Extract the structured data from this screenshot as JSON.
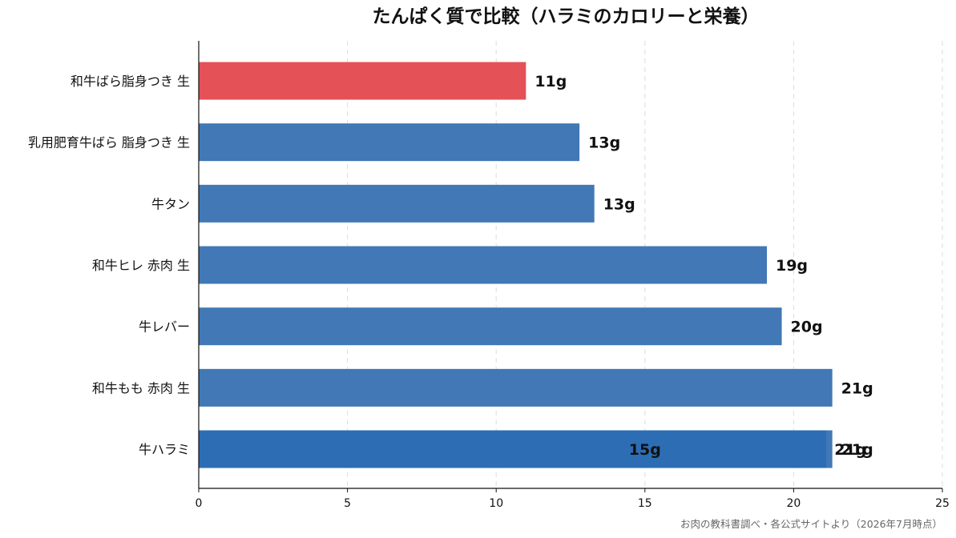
{
  "chart_data": {
    "type": "bar",
    "orientation": "horizontal",
    "title": "たんぱく質で比較（ハラミのカロリーと栄養）",
    "xlabel": "",
    "ylabel": "",
    "xlim": [
      0,
      25
    ],
    "xticks": [
      0,
      5,
      10,
      15,
      20,
      25
    ],
    "grid": "x, dashed",
    "categories": [
      "和牛ばら脂身つき 生",
      "乳用肥育牛ばら 脂身つき 生",
      "牛タン",
      "和牛ヒレ 赤肉 生",
      "牛レバー",
      "和牛もも 赤肉 生",
      "牛ハラミ"
    ],
    "values": [
      11,
      12.8,
      13.3,
      19.1,
      19.6,
      21.3,
      21.3
    ],
    "value_labels": [
      "11g",
      "13g",
      "13g",
      "19g",
      "20g",
      "21g",
      "21g"
    ],
    "bar_colors": [
      "#e45257",
      "#4178b5",
      "#4178b5",
      "#4178b5",
      "#4178b5",
      "#4178b5",
      "#4178b5"
    ],
    "overlay": {
      "category": "牛ハラミ",
      "value": 21.1,
      "color": "#2d6db3",
      "value_labels": [
        "15g",
        "21g"
      ]
    },
    "source": "お肉の教科書調べ・各公式サイトより（2026年7月時点）"
  }
}
